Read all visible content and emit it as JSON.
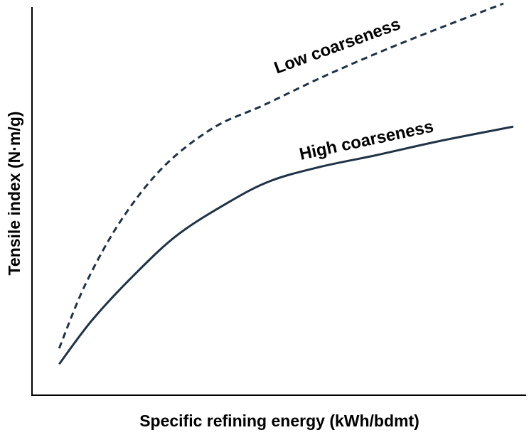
{
  "chart_data": {
    "type": "line",
    "x_label": "Specific refining energy (kWh/bdmt)",
    "y_label": "Tensile index (N·m/g)",
    "xlim": [
      0,
      100
    ],
    "ylim": [
      0,
      100
    ],
    "series": [
      {
        "name": "Low coarseness",
        "color": "#1f3346",
        "style": "dashed",
        "x": [
          5.5,
          10.8,
          18,
          26.6,
          36.7,
          46.8,
          58.3,
          69.8,
          81.3,
          95.4
        ],
        "values": [
          11.7,
          27.9,
          44.1,
          57.7,
          67.6,
          73.3,
          80.2,
          86.5,
          92.3,
          99.1
        ]
      },
      {
        "name": "High coarseness",
        "color": "#1f3346",
        "style": "solid",
        "x": [
          5.5,
          12.2,
          20.9,
          29.5,
          39.6,
          48.2,
          58.3,
          69.8,
          82.7,
          97.4
        ],
        "values": [
          7.7,
          18.9,
          30.6,
          40.5,
          48.6,
          54.1,
          57.7,
          60.7,
          64.3,
          67.9
        ]
      }
    ]
  }
}
